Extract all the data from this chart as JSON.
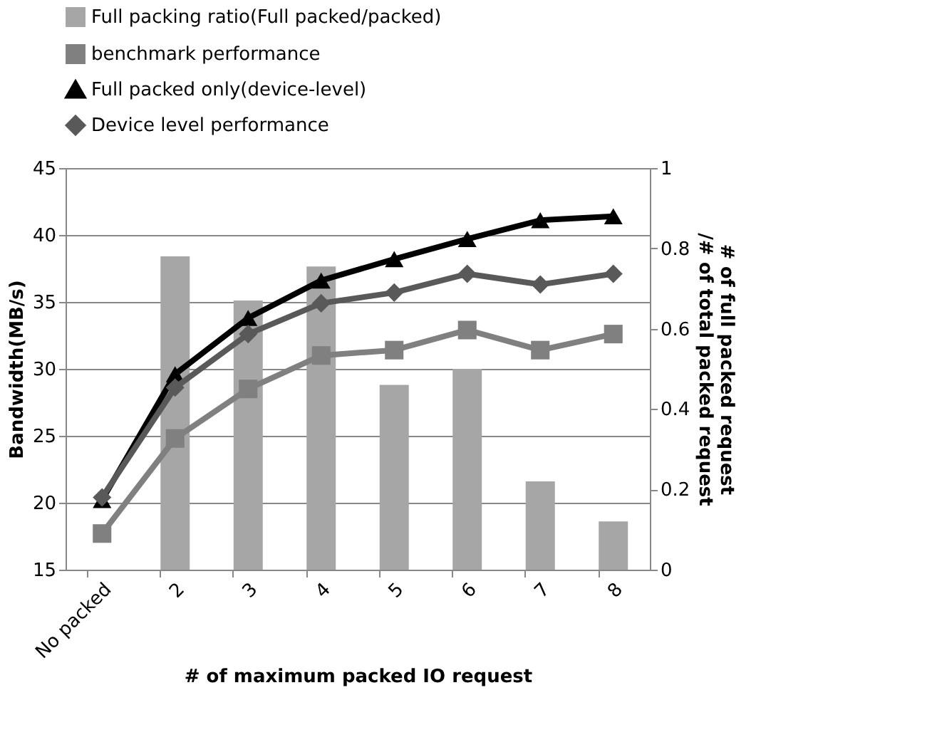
{
  "chart_data": {
    "type": "line",
    "xlabel": "# of maximum packed IO request",
    "ylabel": "Bandwidth(MB/s)",
    "y2label": "# of full packed request\n/# of total packed request",
    "categories": [
      "No packed",
      "2",
      "3",
      "4",
      "5",
      "6",
      "7",
      "8"
    ],
    "series": [
      {
        "name": "Full packing ratio(Full packed/packed)",
        "type": "bar",
        "axis": "y2",
        "color": "#a6a6a6",
        "values": [
          null,
          0.78,
          0.67,
          0.755,
          0.46,
          0.5,
          0.22,
          0.12
        ]
      },
      {
        "name": "benchmark performance",
        "marker": "square",
        "color": "#808080",
        "values": [
          17.7,
          24.8,
          28.5,
          31.0,
          31.4,
          32.9,
          31.4,
          32.6
        ]
      },
      {
        "name": "Full packed only(device-level)",
        "marker": "triangle",
        "color": "#000000",
        "values": [
          20.2,
          29.6,
          33.8,
          36.6,
          38.2,
          39.7,
          41.1,
          41.4
        ]
      },
      {
        "name": "Device level performance",
        "marker": "diamond",
        "color": "#595959",
        "values": [
          20.4,
          28.6,
          32.6,
          34.9,
          35.7,
          37.1,
          36.3,
          37.1
        ]
      }
    ],
    "ylim": [
      15,
      45
    ],
    "yticks": [
      15,
      20,
      25,
      30,
      35,
      40,
      45
    ],
    "y2lim": [
      0,
      1
    ],
    "y2ticks": [
      0,
      0.2,
      0.4,
      0.6,
      0.8,
      1
    ],
    "grid": "y",
    "legend": "top",
    "line_style": "solid"
  }
}
